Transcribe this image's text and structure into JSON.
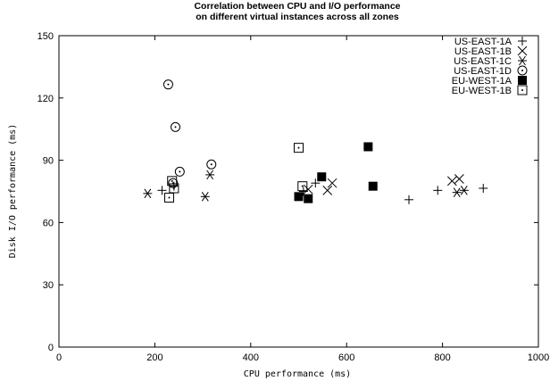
{
  "chart_data": {
    "type": "scatter",
    "title": "Correlation between CPU and I/O performance",
    "subtitle": "on different virtual instances across all zones",
    "xlabel": "CPU performance (ms)",
    "ylabel": "Disk I/O performance (ms)",
    "xlim": [
      0,
      1000
    ],
    "ylim": [
      0,
      150
    ],
    "xticks": [
      "0",
      "200",
      "400",
      "600",
      "800",
      "1000"
    ],
    "yticks": [
      "0",
      "30",
      "60",
      "90",
      "120",
      "150"
    ],
    "grid": false,
    "legend_position": "top-right",
    "series": [
      {
        "name": "US-EAST-1A",
        "marker": "plus",
        "points": [
          [
            215,
            75.5
          ],
          [
            240,
            77.5
          ],
          [
            510,
            75
          ],
          [
            535,
            79
          ],
          [
            730,
            71
          ],
          [
            790,
            75.5
          ],
          [
            885,
            76.5
          ]
        ]
      },
      {
        "name": "US-EAST-1B",
        "marker": "cross",
        "points": [
          [
            520,
            76
          ],
          [
            560,
            75.5
          ],
          [
            570,
            79
          ],
          [
            820,
            80
          ],
          [
            835,
            81
          ]
        ]
      },
      {
        "name": "US-EAST-1C",
        "marker": "asterisk",
        "points": [
          [
            185,
            74
          ],
          [
            305,
            72.5
          ],
          [
            315,
            83
          ],
          [
            830,
            74.5
          ],
          [
            845,
            75.5
          ]
        ]
      },
      {
        "name": "US-EAST-1D",
        "marker": "dotted-circle",
        "points": [
          [
            228,
            126.5
          ],
          [
            243,
            106
          ],
          [
            238,
            79
          ],
          [
            252,
            84.5
          ],
          [
            318,
            88
          ]
        ]
      },
      {
        "name": "EU-WEST-1A",
        "marker": "filled-square",
        "points": [
          [
            500,
            72.5
          ],
          [
            520,
            71.5
          ],
          [
            548,
            82
          ],
          [
            645,
            96.5
          ],
          [
            655,
            77.5
          ]
        ]
      },
      {
        "name": "EU-WEST-1B",
        "marker": "dotted-square",
        "points": [
          [
            500,
            96
          ],
          [
            508,
            77.5
          ],
          [
            230,
            72
          ],
          [
            236,
            80
          ],
          [
            240,
            76.5
          ]
        ]
      }
    ]
  }
}
